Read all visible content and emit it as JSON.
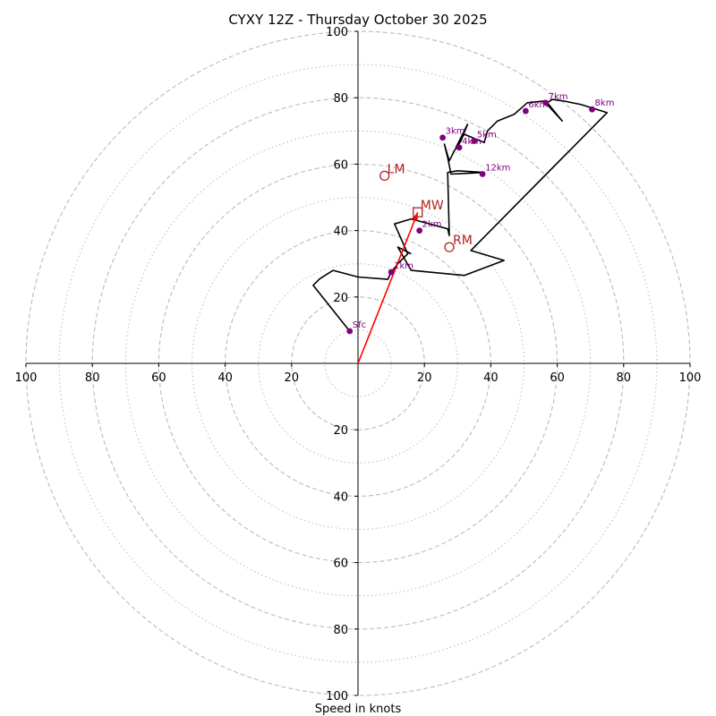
{
  "chart_data": {
    "type": "hodograph",
    "title": "CYXY 12Z - Thursday October 30 2025",
    "xlabel": "Speed in knots",
    "range": [
      -100,
      100
    ],
    "rings": [
      20,
      40,
      60,
      80,
      100
    ],
    "minor_rings": [
      10,
      30,
      50,
      70,
      90
    ],
    "x_ticks": [
      "100",
      "80",
      "60",
      "40",
      "20",
      "20",
      "40",
      "60",
      "80",
      "100"
    ],
    "y_ticks": [
      "100",
      "80",
      "60",
      "40",
      "20",
      "20",
      "40",
      "60",
      "80",
      "100"
    ],
    "hodograph_line": [
      [
        -2.5,
        9.7
      ],
      [
        -13.5,
        23.5
      ],
      [
        -11.5,
        25.5
      ],
      [
        -7.5,
        28
      ],
      [
        0,
        26
      ],
      [
        9,
        25.3
      ],
      [
        10,
        27.5
      ],
      [
        12,
        30
      ],
      [
        15,
        33
      ],
      [
        11,
        42
      ],
      [
        16,
        43.5
      ],
      [
        27,
        40.5
      ],
      [
        27.5,
        38.5
      ],
      [
        27,
        57.5
      ],
      [
        30,
        58
      ],
      [
        38,
        57.5
      ],
      [
        28,
        57
      ],
      [
        27,
        62
      ],
      [
        26,
        66
      ],
      [
        27.5,
        61
      ],
      [
        29,
        64
      ],
      [
        31,
        67
      ],
      [
        33,
        72
      ],
      [
        29.5,
        65
      ],
      [
        32,
        69
      ],
      [
        38,
        66.5
      ],
      [
        39,
        70
      ],
      [
        42,
        73
      ],
      [
        47,
        75
      ],
      [
        51,
        78.5
      ],
      [
        56,
        79
      ],
      [
        61.5,
        73
      ],
      [
        57,
        78.5
      ],
      [
        58.5,
        79.5
      ],
      [
        62,
        79
      ],
      [
        67,
        78
      ],
      [
        75,
        75.5
      ],
      [
        34,
        34
      ],
      [
        44,
        31
      ],
      [
        32,
        26.5
      ],
      [
        16,
        28
      ],
      [
        12,
        35
      ],
      [
        16,
        33
      ]
    ],
    "height_markers": [
      {
        "label": "Sfc",
        "x": -2.5,
        "y": 9.7
      },
      {
        "label": "1km",
        "x": 10,
        "y": 27.5
      },
      {
        "label": "2km",
        "x": 18.5,
        "y": 40
      },
      {
        "label": "3km",
        "x": 25.5,
        "y": 68
      },
      {
        "label": "4km",
        "x": 30.5,
        "y": 65
      },
      {
        "label": "5km",
        "x": 35,
        "y": 67
      },
      {
        "label": "6km",
        "x": 50.5,
        "y": 76
      },
      {
        "label": "7km",
        "x": 56.5,
        "y": 78.5
      },
      {
        "label": "8km",
        "x": 70.5,
        "y": 76.5
      },
      {
        "label": "12km",
        "x": 37.5,
        "y": 57
      }
    ],
    "storm_motion": {
      "LM": {
        "label": "LM",
        "x": 8,
        "y": 56.5
      },
      "RM": {
        "label": "RM",
        "x": 27.5,
        "y": 35
      },
      "MW": {
        "label": "MW",
        "x": 18,
        "y": 45.5
      }
    },
    "colors": {
      "hodograph": "#000000",
      "marker": "#800080",
      "storm": "#b22222",
      "mean_wind_vector": "#ff0000",
      "grid": "#bbbbbb"
    }
  }
}
